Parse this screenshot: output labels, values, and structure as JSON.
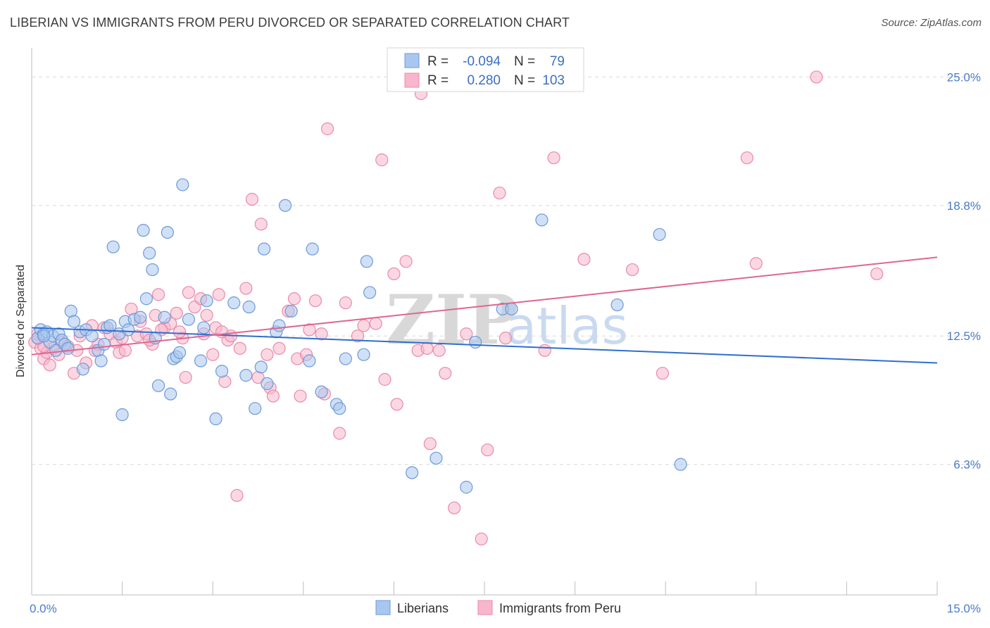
{
  "title": "LIBERIAN VS IMMIGRANTS FROM PERU DIVORCED OR SEPARATED CORRELATION CHART",
  "source": "Source: ZipAtlas.com",
  "colors": {
    "blue_fill": "#a9c6ef",
    "blue_stroke": "#6d9ad8",
    "blue_line": "#2e6fcf",
    "pink_fill": "#f7b6cb",
    "pink_stroke": "#e98aaa",
    "pink_line": "#e0668f",
    "tick_text": "#4a7cc9",
    "grid": "#d9d9d9"
  },
  "legend": {
    "rows": [
      {
        "r_label": "R =",
        "r_value": "-0.094",
        "n_label": "N =",
        "n_value": "79"
      },
      {
        "r_label": "R =",
        "r_value": "0.280",
        "n_label": "N =",
        "n_value": "103"
      }
    ]
  },
  "watermark": {
    "zip": "ZIP",
    "atlas": "atlas"
  },
  "chart_data": {
    "type": "scatter",
    "title": "LIBERIAN VS IMMIGRANTS FROM PERU DIVORCED OR SEPARATED CORRELATION CHART",
    "xlabel": "",
    "ylabel": "Divorced or Separated",
    "xlim": [
      0,
      15
    ],
    "ylim": [
      0,
      26
    ],
    "x_tick_labels": [
      "0.0%",
      "15.0%"
    ],
    "y_ticks": [
      6.3,
      12.5,
      18.8,
      25.0
    ],
    "y_tick_labels": [
      "6.3%",
      "12.5%",
      "18.8%",
      "25.0%"
    ],
    "grid": true,
    "legend_position": "top-center",
    "series": [
      {
        "name": "Liberians",
        "color": "#a9c6ef",
        "trend": {
          "x": [
            0,
            15
          ],
          "y": [
            12.9,
            11.2
          ]
        },
        "points": [
          [
            0.1,
            12.4
          ],
          [
            0.15,
            12.8
          ],
          [
            0.2,
            12.6
          ],
          [
            0.25,
            12.7
          ],
          [
            0.3,
            12.2
          ],
          [
            0.35,
            12.5
          ],
          [
            0.4,
            11.8
          ],
          [
            0.45,
            12.6
          ],
          [
            0.5,
            12.3
          ],
          [
            0.55,
            12.1
          ],
          [
            0.6,
            11.9
          ],
          [
            0.65,
            13.7
          ],
          [
            0.7,
            13.2
          ],
          [
            0.8,
            12.7
          ],
          [
            0.85,
            10.9
          ],
          [
            0.9,
            12.8
          ],
          [
            1.0,
            12.5
          ],
          [
            1.1,
            11.8
          ],
          [
            1.15,
            11.3
          ],
          [
            1.2,
            12.1
          ],
          [
            1.25,
            12.9
          ],
          [
            1.3,
            13.0
          ],
          [
            1.35,
            16.8
          ],
          [
            1.45,
            12.6
          ],
          [
            1.5,
            8.7
          ],
          [
            1.55,
            13.2
          ],
          [
            1.6,
            12.8
          ],
          [
            1.7,
            13.3
          ],
          [
            1.8,
            13.4
          ],
          [
            1.85,
            17.6
          ],
          [
            1.9,
            14.3
          ],
          [
            1.95,
            16.5
          ],
          [
            2.0,
            15.7
          ],
          [
            2.05,
            12.4
          ],
          [
            2.1,
            10.1
          ],
          [
            2.2,
            13.4
          ],
          [
            2.25,
            17.5
          ],
          [
            2.3,
            9.7
          ],
          [
            2.35,
            11.4
          ],
          [
            2.4,
            11.5
          ],
          [
            2.45,
            11.7
          ],
          [
            2.5,
            19.8
          ],
          [
            2.6,
            13.3
          ],
          [
            2.8,
            11.3
          ],
          [
            2.85,
            12.9
          ],
          [
            2.9,
            14.2
          ],
          [
            3.05,
            8.5
          ],
          [
            3.15,
            10.8
          ],
          [
            3.35,
            14.1
          ],
          [
            3.55,
            10.6
          ],
          [
            3.6,
            13.9
          ],
          [
            3.7,
            9.0
          ],
          [
            3.8,
            11.0
          ],
          [
            3.85,
            16.7
          ],
          [
            3.9,
            10.2
          ],
          [
            4.05,
            12.7
          ],
          [
            4.1,
            13.0
          ],
          [
            4.2,
            18.8
          ],
          [
            4.3,
            13.7
          ],
          [
            4.6,
            11.3
          ],
          [
            4.65,
            16.7
          ],
          [
            4.8,
            9.8
          ],
          [
            5.05,
            9.2
          ],
          [
            5.1,
            9.0
          ],
          [
            5.2,
            11.4
          ],
          [
            5.5,
            11.6
          ],
          [
            5.55,
            16.1
          ],
          [
            5.6,
            14.6
          ],
          [
            6.3,
            5.9
          ],
          [
            6.7,
            6.6
          ],
          [
            7.2,
            5.2
          ],
          [
            7.35,
            12.2
          ],
          [
            7.8,
            13.8
          ],
          [
            7.95,
            13.8
          ],
          [
            8.45,
            18.1
          ],
          [
            9.7,
            14.0
          ],
          [
            10.4,
            17.4
          ],
          [
            10.75,
            6.3
          ],
          [
            0.2,
            12.5
          ]
        ]
      },
      {
        "name": "Immigrants from Peru",
        "color": "#f7b6cb",
        "trend": {
          "x": [
            0,
            15
          ],
          "y": [
            11.6,
            16.3
          ]
        },
        "points": [
          [
            0.05,
            12.2
          ],
          [
            0.1,
            12.6
          ],
          [
            0.15,
            11.9
          ],
          [
            0.2,
            11.4
          ],
          [
            0.25,
            11.7
          ],
          [
            0.3,
            11.1
          ],
          [
            0.35,
            11.9
          ],
          [
            0.45,
            11.6
          ],
          [
            0.5,
            12.2
          ],
          [
            0.6,
            12.0
          ],
          [
            0.7,
            10.7
          ],
          [
            0.75,
            11.8
          ],
          [
            0.8,
            12.5
          ],
          [
            0.9,
            11.2
          ],
          [
            1.0,
            13.0
          ],
          [
            1.05,
            11.8
          ],
          [
            1.1,
            12.1
          ],
          [
            1.2,
            12.9
          ],
          [
            1.3,
            12.6
          ],
          [
            1.4,
            12.2
          ],
          [
            1.45,
            11.7
          ],
          [
            1.5,
            12.4
          ],
          [
            1.55,
            11.8
          ],
          [
            1.65,
            13.8
          ],
          [
            1.75,
            12.5
          ],
          [
            1.8,
            13.2
          ],
          [
            1.9,
            12.6
          ],
          [
            2.0,
            12.1
          ],
          [
            2.05,
            13.5
          ],
          [
            2.1,
            14.5
          ],
          [
            2.2,
            12.9
          ],
          [
            2.3,
            13.1
          ],
          [
            2.4,
            13.6
          ],
          [
            2.5,
            12.4
          ],
          [
            2.55,
            10.5
          ],
          [
            2.6,
            14.6
          ],
          [
            2.7,
            13.9
          ],
          [
            2.8,
            14.3
          ],
          [
            2.85,
            12.6
          ],
          [
            2.9,
            13.5
          ],
          [
            3.0,
            11.6
          ],
          [
            3.05,
            12.9
          ],
          [
            3.1,
            14.5
          ],
          [
            3.2,
            10.3
          ],
          [
            3.25,
            12.3
          ],
          [
            3.3,
            12.5
          ],
          [
            3.4,
            4.8
          ],
          [
            3.45,
            11.9
          ],
          [
            3.55,
            14.8
          ],
          [
            3.65,
            19.1
          ],
          [
            3.75,
            10.5
          ],
          [
            3.8,
            17.9
          ],
          [
            3.9,
            11.6
          ],
          [
            3.95,
            10.0
          ],
          [
            4.0,
            9.6
          ],
          [
            4.1,
            11.9
          ],
          [
            4.25,
            13.7
          ],
          [
            4.35,
            14.3
          ],
          [
            4.4,
            11.4
          ],
          [
            4.45,
            9.6
          ],
          [
            4.55,
            11.6
          ],
          [
            4.6,
            12.8
          ],
          [
            4.7,
            14.2
          ],
          [
            4.8,
            12.6
          ],
          [
            4.85,
            9.7
          ],
          [
            4.9,
            22.5
          ],
          [
            5.1,
            7.8
          ],
          [
            5.2,
            14.1
          ],
          [
            5.4,
            12.5
          ],
          [
            5.5,
            13.0
          ],
          [
            5.7,
            13.1
          ],
          [
            5.8,
            21.0
          ],
          [
            5.85,
            10.4
          ],
          [
            6.0,
            15.5
          ],
          [
            6.05,
            9.2
          ],
          [
            6.2,
            16.1
          ],
          [
            6.4,
            11.8
          ],
          [
            6.45,
            24.2
          ],
          [
            6.55,
            11.9
          ],
          [
            6.6,
            7.3
          ],
          [
            6.75,
            11.8
          ],
          [
            6.85,
            10.7
          ],
          [
            7.0,
            4.2
          ],
          [
            7.2,
            12.6
          ],
          [
            7.45,
            2.7
          ],
          [
            7.55,
            7.0
          ],
          [
            7.75,
            19.4
          ],
          [
            7.85,
            12.4
          ],
          [
            8.5,
            11.8
          ],
          [
            8.65,
            21.1
          ],
          [
            9.15,
            16.2
          ],
          [
            9.95,
            15.7
          ],
          [
            10.45,
            10.7
          ],
          [
            11.85,
            21.1
          ],
          [
            12.0,
            16.0
          ],
          [
            13.0,
            25.0
          ],
          [
            14.0,
            15.5
          ],
          [
            0.1,
            12.4
          ],
          [
            0.2,
            12.0
          ],
          [
            1.95,
            12.3
          ],
          [
            2.15,
            12.8
          ],
          [
            2.45,
            12.7
          ],
          [
            3.15,
            12.7
          ]
        ]
      }
    ]
  }
}
